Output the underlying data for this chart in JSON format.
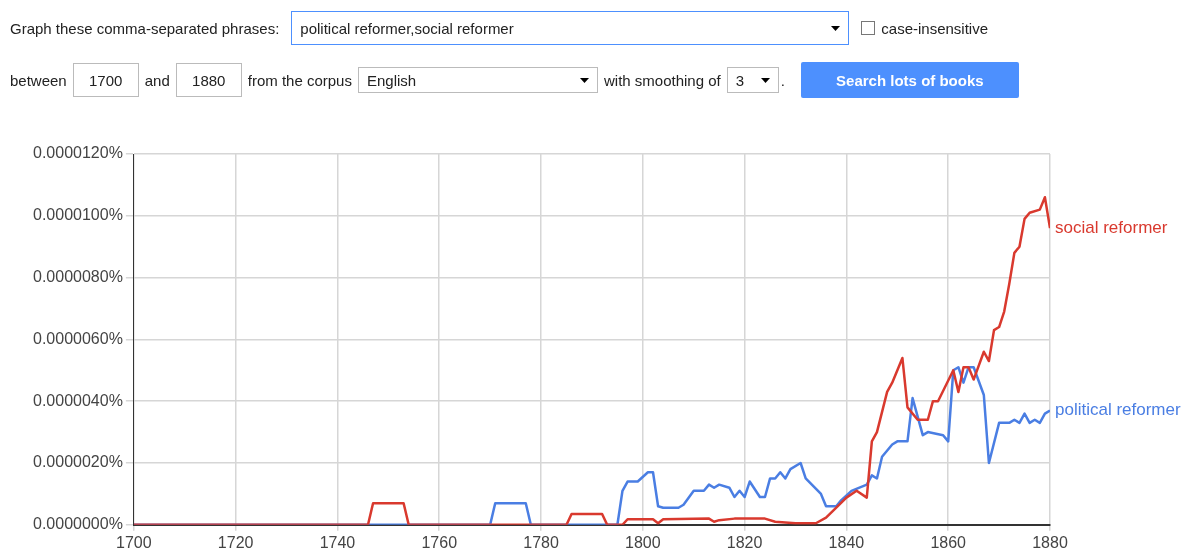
{
  "chart_data": {
    "type": "line",
    "annotations": [
      "Graph these comma-separated phrases:",
      "political reformer,social reformer",
      "case-insensitive",
      "between",
      "1700",
      "and",
      "1880",
      "from the corpus",
      "English",
      "with smoothing of",
      "3",
      ".",
      "Search lots of books"
    ],
    "series": [
      {
        "name": "social reformer",
        "color": "#d9392e",
        "x": [
          1700,
          1746,
          1747,
          1753,
          1754,
          1785,
          1786,
          1792,
          1793,
          1796,
          1797,
          1802,
          1803,
          1804,
          1813,
          1814,
          1815,
          1818,
          1824,
          1826,
          1830,
          1834,
          1836,
          1840,
          1842,
          1844,
          1845,
          1846,
          1848,
          1849,
          1851,
          1852,
          1854,
          1856,
          1857,
          1858,
          1861,
          1862,
          1863,
          1864,
          1865,
          1867,
          1868,
          1869,
          1870,
          1871,
          1872,
          1873,
          1874,
          1875,
          1876,
          1878,
          1879,
          1880
        ],
        "values": [
          0,
          0,
          7e-07,
          7e-07,
          0,
          0,
          3.5e-07,
          3.5e-07,
          0,
          0,
          1.8e-07,
          1.8e-07,
          5e-08,
          1.8e-07,
          2e-07,
          1e-07,
          1.5e-07,
          2e-07,
          2e-07,
          1e-07,
          5e-08,
          5e-08,
          2.3e-07,
          8.8e-07,
          1.1e-06,
          8.8e-07,
          2.7e-06,
          3e-06,
          4.3e-06,
          4.6e-06,
          5.4e-06,
          3.8e-06,
          3.4e-06,
          3.4e-06,
          4e-06,
          4e-06,
          5e-06,
          4.3e-06,
          5.1e-06,
          5.1e-06,
          4.7e-06,
          5.6e-06,
          5.3e-06,
          6.3e-06,
          6.4e-06,
          6.9e-06,
          7.8e-06,
          8.8e-06,
          9e-06,
          9.9e-06,
          1.01e-05,
          1.02e-05,
          1.06e-05,
          9.6e-06
        ]
      },
      {
        "name": "political reformer",
        "color": "#4a7ee3",
        "x": [
          1700,
          1770,
          1771,
          1777,
          1778,
          1795,
          1796,
          1797,
          1799,
          1801,
          1802,
          1803,
          1804,
          1807,
          1808,
          1810,
          1812,
          1813,
          1814,
          1815,
          1817,
          1818,
          1819,
          1820,
          1821,
          1823,
          1824,
          1825,
          1826,
          1827,
          1828,
          1829,
          1831,
          1832,
          1835,
          1836,
          1838,
          1839,
          1841,
          1844,
          1845,
          1846,
          1847,
          1849,
          1850,
          1852,
          1853,
          1855,
          1856,
          1859,
          1860,
          1861,
          1862,
          1863,
          1864,
          1865,
          1867,
          1868,
          1870,
          1872,
          1873,
          1874,
          1875,
          1876,
          1877,
          1878,
          1879,
          1880
        ],
        "values": [
          0,
          0,
          7e-07,
          7e-07,
          0,
          0,
          1.1e-06,
          1.4e-06,
          1.4e-06,
          1.7e-06,
          1.7e-06,
          6e-07,
          5.5e-07,
          5.5e-07,
          6.5e-07,
          1.1e-06,
          1.1e-06,
          1.3e-06,
          1.2e-06,
          1.3e-06,
          1.2e-06,
          9e-07,
          1.1e-06,
          9e-07,
          1.4e-06,
          9e-07,
          9e-07,
          1.5e-06,
          1.5e-06,
          1.7e-06,
          1.5e-06,
          1.8e-06,
          2e-06,
          1.5e-06,
          1e-06,
          6e-07,
          6e-07,
          8e-07,
          1.1e-06,
          1.3e-06,
          1.6e-06,
          1.5e-06,
          2.2e-06,
          2.6e-06,
          2.7e-06,
          2.7e-06,
          4.1e-06,
          2.9e-06,
          3e-06,
          2.9e-06,
          2.7e-06,
          5e-06,
          5.1e-06,
          4.6e-06,
          5.1e-06,
          5.1e-06,
          4.2e-06,
          2e-06,
          3.3e-06,
          3.3e-06,
          3.4e-06,
          3.3e-06,
          3.6e-06,
          3.3e-06,
          3.4e-06,
          3.3e-06,
          3.6e-06,
          3.7e-06
        ]
      }
    ],
    "xlim": [
      1700,
      1880
    ],
    "xticks": [
      1700,
      1720,
      1740,
      1760,
      1780,
      1800,
      1820,
      1840,
      1860,
      1880
    ],
    "ylim": [
      0,
      1.2e-05
    ],
    "yticks": [
      {
        "value": 0,
        "label": "0.0000000%"
      },
      {
        "value": 2e-06,
        "label": "0.0000020%"
      },
      {
        "value": 4e-06,
        "label": "0.0000040%"
      },
      {
        "value": 6e-06,
        "label": "0.0000060%"
      },
      {
        "value": 8e-06,
        "label": "0.0000080%"
      },
      {
        "value": 1e-05,
        "label": "0.0000100%"
      },
      {
        "value": 1.2e-05,
        "label": "0.0000120%"
      }
    ],
    "grid": true,
    "marker": "none",
    "line_style": "solid"
  }
}
